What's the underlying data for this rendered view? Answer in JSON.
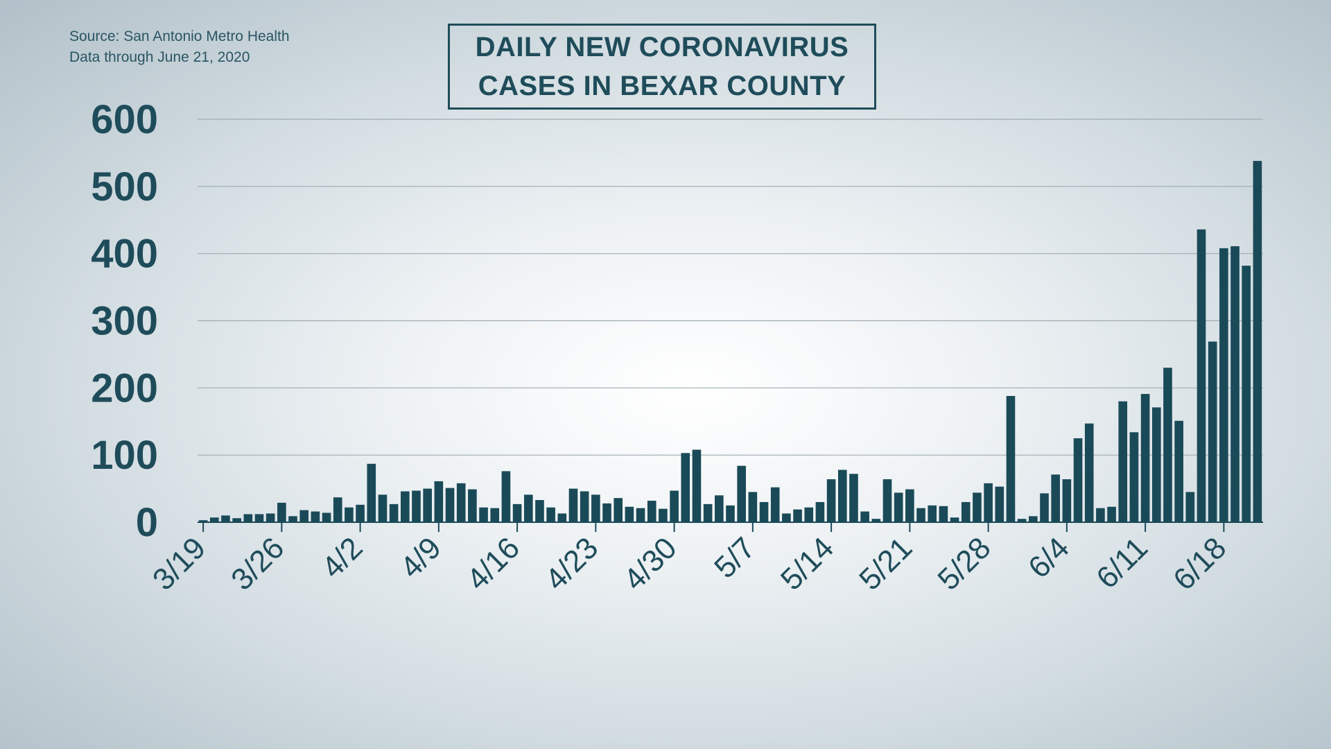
{
  "source": {
    "line1": "Source: San Antonio Metro Health",
    "line2": "Data through June 21, 2020"
  },
  "colors": {
    "bar": "#1a4a58",
    "text": "#1f4c5a",
    "grid": "#9eabb2"
  },
  "chart_data": {
    "type": "bar",
    "title": "DAILY NEW CORONAVIRUS CASES IN BEXAR COUNTY",
    "title_lines": [
      "DAILY NEW CORONAVIRUS",
      "CASES IN BEXAR COUNTY"
    ],
    "xlabel": "",
    "ylabel": "",
    "ylim": [
      0,
      600
    ],
    "yticks": [
      0,
      100,
      200,
      300,
      400,
      500,
      600
    ],
    "grid": true,
    "x_tick_labels": [
      {
        "label": "3/19",
        "index": 0
      },
      {
        "label": "3/26",
        "index": 7
      },
      {
        "label": "4/2",
        "index": 14
      },
      {
        "label": "4/9",
        "index": 21
      },
      {
        "label": "4/16",
        "index": 28
      },
      {
        "label": "4/23",
        "index": 35
      },
      {
        "label": "4/30",
        "index": 42
      },
      {
        "label": "5/7",
        "index": 49
      },
      {
        "label": "5/14",
        "index": 56
      },
      {
        "label": "5/21",
        "index": 63
      },
      {
        "label": "5/28",
        "index": 70
      },
      {
        "label": "6/4",
        "index": 77
      },
      {
        "label": "6/11",
        "index": 84
      },
      {
        "label": "6/18",
        "index": 91
      }
    ],
    "start_date": "3/19",
    "values": [
      3,
      7,
      10,
      6,
      12,
      12,
      13,
      29,
      9,
      18,
      16,
      14,
      37,
      22,
      26,
      87,
      41,
      27,
      46,
      47,
      50,
      61,
      51,
      58,
      49,
      22,
      21,
      76,
      27,
      41,
      33,
      22,
      13,
      50,
      46,
      41,
      28,
      36,
      23,
      21,
      32,
      20,
      47,
      103,
      108,
      27,
      40,
      25,
      84,
      45,
      30,
      52,
      13,
      19,
      22,
      30,
      64,
      78,
      72,
      16,
      5,
      64,
      44,
      49,
      21,
      25,
      24,
      7,
      30,
      44,
      58,
      53,
      188,
      5,
      9,
      43,
      71,
      64,
      125,
      147,
      21,
      23,
      180,
      134,
      191,
      171,
      230,
      151,
      45,
      436,
      269,
      408,
      411,
      382,
      538
    ]
  }
}
